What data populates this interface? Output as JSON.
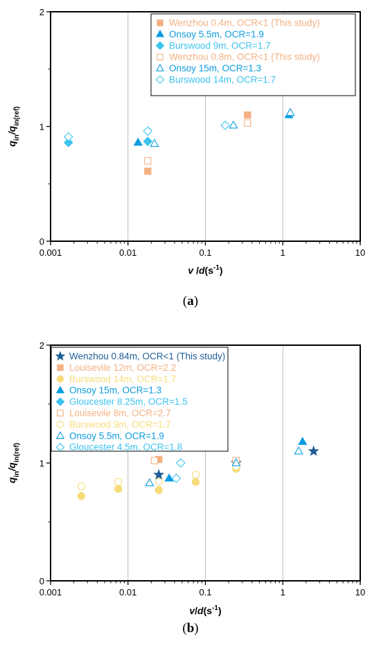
{
  "chart_data": [
    {
      "type": "scatter",
      "caption": "(a)",
      "xlabel": "v /d(s-1)",
      "ylabel": "qin/qin(ref)",
      "xscale": "log",
      "xlim": [
        0.001,
        10
      ],
      "ylim": [
        0,
        2
      ],
      "xticks": [
        "0.001",
        "0.01",
        "0.1",
        "1",
        "10"
      ],
      "yticks": [
        "0",
        "1",
        "2"
      ],
      "grid": "vertical",
      "legend_position": "top-right",
      "series": [
        {
          "name": "Wenzhou 0.4m, OCR<1 (This study)",
          "marker": "square",
          "filled": true,
          "color": "#F4B183",
          "points": [
            [
              0.018,
              0.61
            ],
            [
              0.35,
              1.1
            ]
          ]
        },
        {
          "name": "Onsoy 5.5m, OCR=1.9",
          "marker": "triangle",
          "filled": true,
          "color": "#0B9CE0",
          "points": [
            [
              0.0135,
              0.86
            ],
            [
              1.2,
              1.1
            ]
          ]
        },
        {
          "name": "Burswood 9m, OCR=1.7",
          "marker": "diamond",
          "filled": true,
          "color": "#3DC3F0",
          "points": [
            [
              0.0017,
              0.86
            ],
            [
              0.018,
              0.87
            ]
          ]
        },
        {
          "name": "Wenzhou 0.8m, OCR<1 (This study)",
          "marker": "square",
          "filled": false,
          "color": "#F4B183",
          "points": [
            [
              0.018,
              0.7
            ],
            [
              0.35,
              1.03
            ]
          ]
        },
        {
          "name": "Onsoy 15m, OCR=1.3",
          "marker": "triangle",
          "filled": false,
          "color": "#0B9CE0",
          "points": [
            [
              0.022,
              0.85
            ],
            [
              0.23,
              1.01
            ],
            [
              1.25,
              1.12
            ]
          ]
        },
        {
          "name": "Burswood 14m, OCR=1.7",
          "marker": "diamond",
          "filled": false,
          "color": "#3DC3F0",
          "points": [
            [
              0.0017,
              0.91
            ],
            [
              0.018,
              0.96
            ],
            [
              0.18,
              1.01
            ]
          ]
        }
      ]
    },
    {
      "type": "scatter",
      "caption": "(b)",
      "xlabel": "v/d(s-1)",
      "ylabel": "qin/qin(ref)",
      "xscale": "log",
      "xlim": [
        0.001,
        10
      ],
      "ylim": [
        0,
        2
      ],
      "xticks": [
        "0.001",
        "0.01",
        "0.1",
        "1",
        "10"
      ],
      "yticks": [
        "0",
        "1",
        "2"
      ],
      "grid": "vertical",
      "legend_position": "top-left",
      "series": [
        {
          "name": "Wenzhou 0.84m, OCR<1 (This study)",
          "marker": "star",
          "filled": true,
          "color": "#1F5E96",
          "points": [
            [
              0.025,
              0.9
            ],
            [
              0.25,
              1.0
            ],
            [
              2.5,
              1.1
            ]
          ]
        },
        {
          "name": "Louisevile 12m, OCR=2.2",
          "marker": "square",
          "filled": true,
          "color": "#F4B183",
          "points": [
            [
              0.025,
              1.03
            ],
            [
              0.25,
              1.01
            ]
          ]
        },
        {
          "name": "Burswood 14m, OCR=1.7",
          "marker": "circle",
          "filled": true,
          "color": "#F7DC7A",
          "points": [
            [
              0.0025,
              0.72
            ],
            [
              0.0075,
              0.78
            ],
            [
              0.025,
              0.77
            ],
            [
              0.075,
              0.84
            ],
            [
              0.25,
              0.95
            ]
          ]
        },
        {
          "name": "Onsoy 15m, OCR=1.3",
          "marker": "triangle",
          "filled": true,
          "color": "#0B9CE0",
          "points": [
            [
              0.034,
              0.87
            ],
            [
              1.8,
              1.18
            ]
          ]
        },
        {
          "name": "Gloucester 8.25m, OCR=1.5",
          "marker": "diamond",
          "filled": true,
          "color": "#3DC3F0",
          "points": []
        },
        {
          "name": "Louisevile 8m, OCR=2.7",
          "marker": "square",
          "filled": false,
          "color": "#F4B183",
          "points": [
            [
              0.022,
              1.02
            ],
            [
              0.25,
              1.02
            ]
          ]
        },
        {
          "name": "Burswood 9m, OCR=1.7",
          "marker": "circle",
          "filled": false,
          "color": "#F7DC7A",
          "points": [
            [
              0.0025,
              0.8
            ],
            [
              0.0075,
              0.84
            ],
            [
              0.025,
              0.84
            ],
            [
              0.075,
              0.9
            ],
            [
              0.25,
              0.97
            ]
          ]
        },
        {
          "name": "Onsoy 5.5m, OCR=1.9",
          "marker": "triangle",
          "filled": false,
          "color": "#0B9CE0",
          "points": [
            [
              0.019,
              0.83
            ],
            [
              0.25,
              1.0
            ],
            [
              1.6,
              1.1
            ]
          ]
        },
        {
          "name": "Gloucester 4.5m, OCR=1.8",
          "marker": "diamond",
          "filled": false,
          "color": "#3DC3F0",
          "points": [
            [
              0.042,
              0.87
            ],
            [
              0.048,
              1.0
            ]
          ]
        }
      ]
    }
  ]
}
